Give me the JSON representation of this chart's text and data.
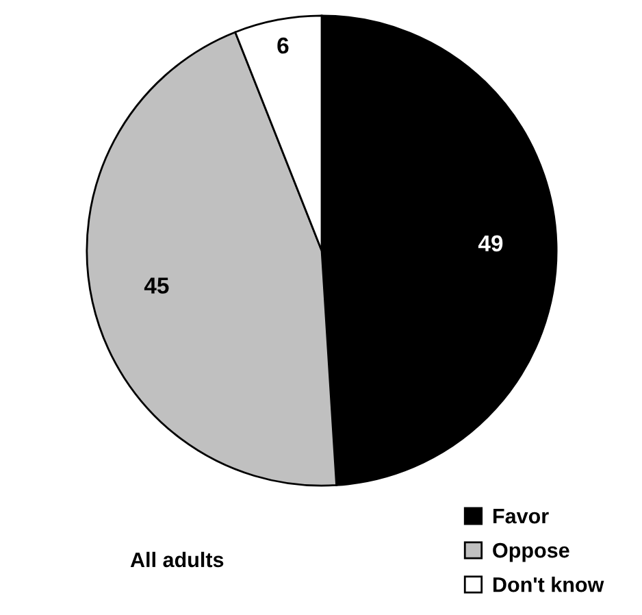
{
  "chart_data": {
    "type": "pie",
    "categories": [
      "Favor",
      "Oppose",
      "Don't know"
    ],
    "values": [
      49,
      45,
      6
    ],
    "colors": [
      "#000000",
      "#c0c0c0",
      "#ffffff"
    ],
    "data_labels": true,
    "legend": "bottom right",
    "annotations": [
      "All adults"
    ]
  }
}
